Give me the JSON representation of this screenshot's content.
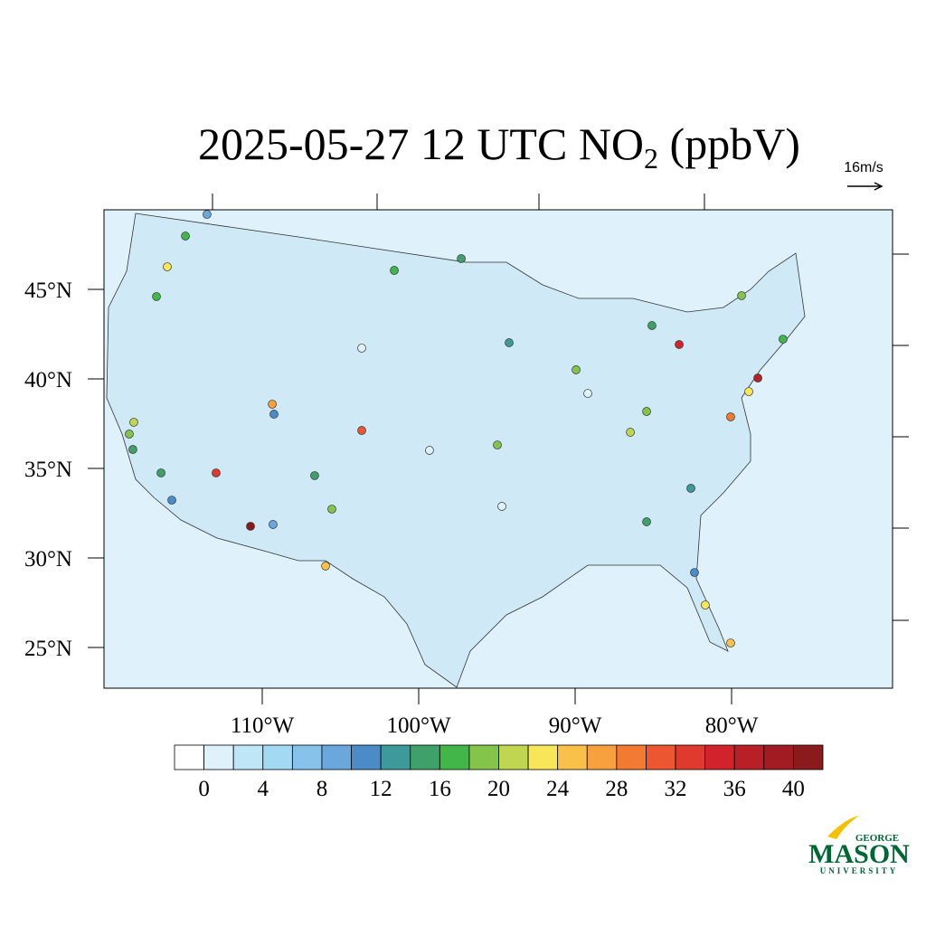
{
  "title": {
    "main": "2025-05-27 12 UTC NO",
    "sub": "2",
    "tail": " (ppbV)"
  },
  "reference_vector": "16m/s",
  "lat_ticks": [
    {
      "value": 45,
      "label": "45°N"
    },
    {
      "value": 40,
      "label": "40°N"
    },
    {
      "value": 35,
      "label": "35°N"
    },
    {
      "value": 30,
      "label": "30°N"
    },
    {
      "value": 25,
      "label": "25°N"
    }
  ],
  "lon_ticks": [
    {
      "value": -110,
      "label": "110°W"
    },
    {
      "value": -100,
      "label": "100°W"
    },
    {
      "value": -90,
      "label": "90°W"
    },
    {
      "value": -80,
      "label": "80°W"
    }
  ],
  "colorbar": {
    "levels": [
      0,
      2,
      4,
      6,
      8,
      10,
      12,
      14,
      16,
      18,
      20,
      22,
      24,
      26,
      28,
      30,
      32,
      34,
      36,
      38,
      40
    ],
    "ticks": [
      0,
      4,
      8,
      12,
      16,
      20,
      24,
      28,
      32,
      36,
      40
    ],
    "colors": [
      "#ffffff",
      "#dff2fb",
      "#bfe6f7",
      "#a3d9f3",
      "#86c2ea",
      "#6aa8dc",
      "#4b8cc8",
      "#3d9a9a",
      "#3fa06a",
      "#43b64a",
      "#84c44a",
      "#c0d650",
      "#f7e758",
      "#f9c14a",
      "#f7a13e",
      "#f37a31",
      "#ec5630",
      "#e03a2e",
      "#d2232c",
      "#b81f27",
      "#a01b22",
      "#8b1a1c"
    ]
  },
  "stations": [
    {
      "lon": -110.75,
      "lat": 31.77,
      "value": 40
    },
    {
      "lon": -112.95,
      "lat": 34.75,
      "value": 33
    },
    {
      "lon": -78.32,
      "lat": 40.05,
      "value": 36
    },
    {
      "lon": -83.35,
      "lat": 41.92,
      "value": 34
    },
    {
      "lon": -103.64,
      "lat": 37.12,
      "value": 30
    },
    {
      "lon": -109.36,
      "lat": 38.59,
      "value": 27
    },
    {
      "lon": -105.95,
      "lat": 29.55,
      "value": 25
    },
    {
      "lon": -80.06,
      "lat": 37.88,
      "value": 28
    },
    {
      "lon": -80.06,
      "lat": 25.25,
      "value": 25
    },
    {
      "lon": -116.07,
      "lat": 46.26,
      "value": 23
    },
    {
      "lon": -81.68,
      "lat": 27.37,
      "value": 23
    },
    {
      "lon": -78.9,
      "lat": 39.29,
      "value": 23
    },
    {
      "lon": -86.47,
      "lat": 37.02,
      "value": 21
    },
    {
      "lon": -118.5,
      "lat": 36.92,
      "value": 18
    },
    {
      "lon": -118.21,
      "lat": 37.58,
      "value": 21
    },
    {
      "lon": -94.22,
      "lat": 42.02,
      "value": 12
    },
    {
      "lon": -94.97,
      "lat": 36.31,
      "value": 18
    },
    {
      "lon": -85.43,
      "lat": 38.18,
      "value": 18
    },
    {
      "lon": -85.09,
      "lat": 42.98,
      "value": 14
    },
    {
      "lon": -89.94,
      "lat": 40.51,
      "value": 18
    },
    {
      "lon": -114.91,
      "lat": 47.98,
      "value": 17
    },
    {
      "lon": -116.76,
      "lat": 44.6,
      "value": 17
    },
    {
      "lon": -118.27,
      "lat": 36.06,
      "value": 15
    },
    {
      "lon": -116.47,
      "lat": 34.75,
      "value": 14
    },
    {
      "lon": -115.78,
      "lat": 33.23,
      "value": 11
    },
    {
      "lon": -106.65,
      "lat": 34.6,
      "value": 14
    },
    {
      "lon": -105.55,
      "lat": 32.73,
      "value": 19
    },
    {
      "lon": -85.43,
      "lat": 32.02,
      "value": 14
    },
    {
      "lon": -82.6,
      "lat": 33.89,
      "value": 12
    },
    {
      "lon": -82.37,
      "lat": 29.19,
      "value": 10
    },
    {
      "lon": -109.25,
      "lat": 38.03,
      "value": 10
    },
    {
      "lon": -101.56,
      "lat": 46.06,
      "value": 17
    },
    {
      "lon": -109.31,
      "lat": 31.87,
      "value": 9
    },
    {
      "lon": -94.68,
      "lat": 32.88,
      "value": 1
    },
    {
      "lon": -89.19,
      "lat": 39.19,
      "value": 1
    },
    {
      "lon": -99.31,
      "lat": 36.01,
      "value": 1
    },
    {
      "lon": -103.64,
      "lat": 41.72,
      "value": 1
    },
    {
      "lon": -113.53,
      "lat": 49.19,
      "value": 9
    },
    {
      "lon": -97.28,
      "lat": 46.72,
      "value": 14
    },
    {
      "lon": -76.71,
      "lat": 42.22,
      "value": 17
    },
    {
      "lon": -79.36,
      "lat": 44.65,
      "value": 19
    }
  ],
  "logo": {
    "top": "GEORGE",
    "main": "MASON",
    "bottom": "UNIVERSITY"
  }
}
